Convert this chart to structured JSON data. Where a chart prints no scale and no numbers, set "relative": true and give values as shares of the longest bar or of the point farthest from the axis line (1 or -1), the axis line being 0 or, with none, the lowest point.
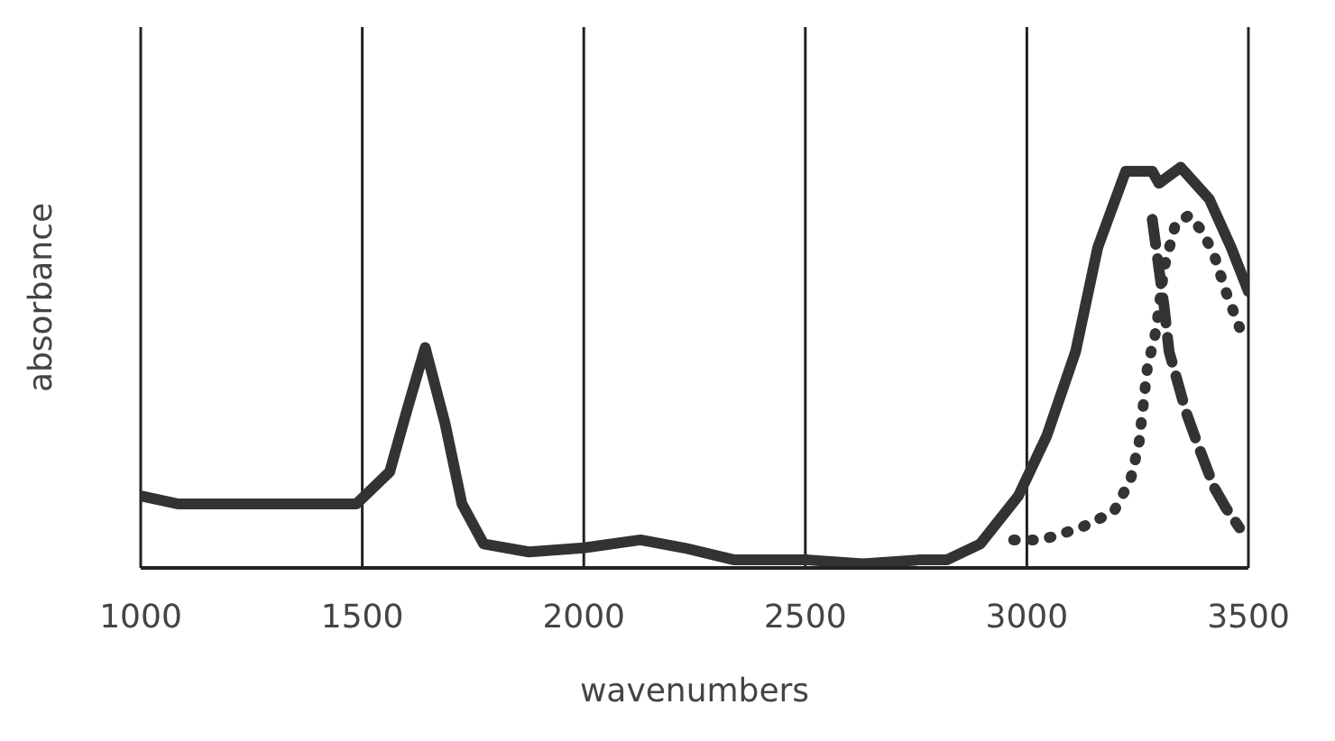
{
  "chart_data": {
    "type": "line",
    "xlabel": "wavenumbers",
    "ylabel": "absorbance",
    "relative": true,
    "xlim": [
      1000,
      3500
    ],
    "xticks": [
      1000,
      1500,
      2000,
      2500,
      3000,
      3500
    ],
    "grid": "x",
    "legend": false,
    "marker": "none",
    "series": [
      {
        "color": "#333333",
        "line_style": "solid",
        "x": [
          1000,
          1083,
          1487,
          1562,
          1600,
          1642,
          1687,
          1725,
          1774,
          1876,
          2000,
          2128,
          2226,
          2340,
          2506,
          2630,
          2755,
          2819,
          2895,
          2981,
          3045,
          3110,
          3160,
          3223,
          3283,
          3298,
          3347,
          3412,
          3461,
          3500
        ],
        "values": [
          0.18,
          0.16,
          0.16,
          0.24,
          0.39,
          0.55,
          0.36,
          0.16,
          0.06,
          0.04,
          0.05,
          0.07,
          0.05,
          0.02,
          0.02,
          0.01,
          0.02,
          0.02,
          0.06,
          0.18,
          0.33,
          0.54,
          0.8,
          0.99,
          0.99,
          0.96,
          1.0,
          0.92,
          0.8,
          0.69
        ]
      },
      {
        "color": "#333333",
        "line_style": "dotted",
        "x": [
          2970,
          3034,
          3121,
          3196,
          3234,
          3253,
          3272,
          3291,
          3310,
          3336,
          3366,
          3396,
          3423,
          3449,
          3480
        ],
        "values": [
          0.07,
          0.07,
          0.1,
          0.14,
          0.22,
          0.31,
          0.5,
          0.59,
          0.75,
          0.86,
          0.88,
          0.84,
          0.78,
          0.69,
          0.6
        ]
      },
      {
        "color": "#333333",
        "line_style": "dashed",
        "x": [
          3283,
          3310,
          3321,
          3359,
          3385,
          3423,
          3449,
          3480
        ],
        "values": [
          0.87,
          0.65,
          0.54,
          0.39,
          0.31,
          0.2,
          0.15,
          0.1
        ]
      }
    ]
  }
}
